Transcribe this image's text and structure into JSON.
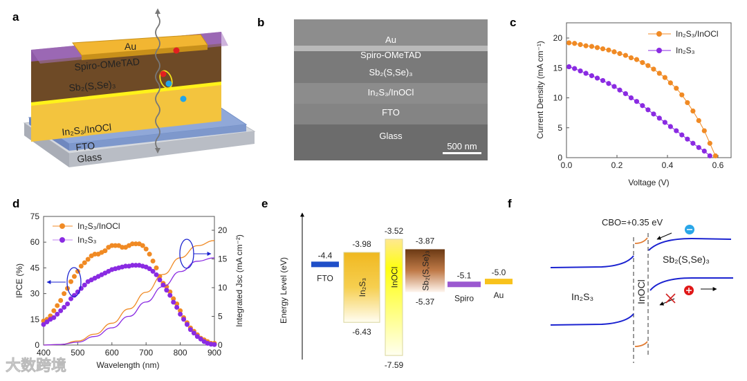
{
  "panels": {
    "a": {
      "letter": "a",
      "layers": [
        "Au",
        "Spiro-OMeTAD",
        "Sb₂(S,Se)₃",
        "In₂S₃/InOCl",
        "FTO",
        "Glass"
      ],
      "colors": {
        "au": "#f2b632",
        "spiro": "#9b59b6",
        "sb": "#6b4320",
        "in2s3": "#f5c842",
        "fto": "#7e9cd1",
        "glass": "#c9ccd2"
      }
    },
    "b": {
      "letter": "b",
      "layers": [
        "Au",
        "Spiro-OMeTAD",
        "Sb₂(S,Se)₃",
        "In₂S₃/InOCl",
        "FTO",
        "Glass"
      ],
      "scale_bar": "500 nm"
    },
    "c": {
      "letter": "c"
    },
    "d": {
      "letter": "d"
    },
    "e": {
      "letter": "e",
      "ylabel": "Energy Level (eV)",
      "materials": [
        {
          "name": "FTO",
          "level": -4.4,
          "level_label": "-4.4",
          "color": "#1f4fc8"
        },
        {
          "name": "In₂S₃",
          "cb": -3.98,
          "vb": -6.43,
          "cb_label": "-3.98",
          "vb_label": "-6.43",
          "color": "#f0b820"
        },
        {
          "name": "InOCl",
          "cb": -3.52,
          "vb": -7.59,
          "cb_label": "-3.52",
          "vb_label": "-7.59",
          "color": "#ffff00"
        },
        {
          "name": "Sb₂(S,Se)₃",
          "cb": -3.87,
          "vb": -5.37,
          "cb_label": "-3.87",
          "vb_label": "-5.37",
          "color": "#7a4a20"
        },
        {
          "name": "Spiro",
          "level": -5.1,
          "level_label": "-5.1",
          "color": "#9b59d0"
        },
        {
          "name": "Au",
          "level": -5.0,
          "level_label": "-5.0",
          "color": "#f8c21c"
        }
      ]
    },
    "f": {
      "letter": "f",
      "cbo_label": "CBO=+0.35 eV",
      "left_label": "In₂S₃",
      "middle_label": "InOCl",
      "right_label": "Sb₂(S,Se)₃"
    }
  },
  "watermark": "大数跨境",
  "chart_data": [
    {
      "id": "c",
      "type": "line",
      "xlabel": "Voltage (V)",
      "ylabel": "Current Density (mA cm⁻¹)",
      "xlim": [
        0,
        0.65
      ],
      "ylim": [
        0,
        22.5
      ],
      "xticks": [
        "0.0",
        "0.2",
        "0.4",
        "0.6"
      ],
      "yticks": [
        "0",
        "5",
        "10",
        "15",
        "20"
      ],
      "legend_position": "top-right",
      "series": [
        {
          "name": "In₂S₃/InOCl",
          "color": "#f08a24",
          "x": [
            0.01,
            0.032,
            0.055,
            0.077,
            0.1,
            0.122,
            0.144,
            0.167,
            0.189,
            0.211,
            0.234,
            0.256,
            0.278,
            0.301,
            0.323,
            0.345,
            0.368,
            0.39,
            0.412,
            0.435,
            0.457,
            0.479,
            0.501,
            0.524,
            0.546,
            0.568,
            0.59
          ],
          "y": [
            19.2,
            19.1,
            18.9,
            18.7,
            18.6,
            18.4,
            18.2,
            18.0,
            17.7,
            17.4,
            17.1,
            16.7,
            16.4,
            15.9,
            15.4,
            14.8,
            14.1,
            13.4,
            12.5,
            11.6,
            10.5,
            9.2,
            7.8,
            6.2,
            4.5,
            2.4,
            0.3
          ]
        },
        {
          "name": "In₂S₃",
          "color": "#8a2be2",
          "x": [
            0.01,
            0.032,
            0.055,
            0.077,
            0.1,
            0.122,
            0.144,
            0.167,
            0.189,
            0.211,
            0.234,
            0.256,
            0.278,
            0.301,
            0.323,
            0.345,
            0.368,
            0.39,
            0.412,
            0.435,
            0.457,
            0.479,
            0.501,
            0.524,
            0.546,
            0.568
          ],
          "y": [
            15.2,
            14.9,
            14.5,
            14.1,
            13.7,
            13.3,
            12.9,
            12.4,
            11.9,
            11.3,
            10.7,
            10.0,
            9.4,
            8.7,
            8.0,
            7.3,
            6.6,
            5.9,
            5.2,
            4.5,
            3.8,
            3.1,
            2.4,
            1.7,
            1.1,
            0.3
          ]
        }
      ]
    },
    {
      "id": "d",
      "type": "scatter",
      "xlabel": "Wavelength (nm)",
      "ylabel": "IPCE (%)",
      "y2label": "Integrated Jsc (mA cm⁻²)",
      "xlim": [
        400,
        900
      ],
      "ylim": [
        0,
        75
      ],
      "y2lim": [
        0,
        22.5
      ],
      "xticks": [
        "400",
        "500",
        "600",
        "700",
        "800",
        "900"
      ],
      "yticks": [
        "0",
        "15",
        "30",
        "45",
        "60",
        "75"
      ],
      "y2ticks": [
        "0",
        "5",
        "10",
        "15",
        "20"
      ],
      "legend_position": "top-left",
      "ipce_x": [
        400,
        410,
        420,
        430,
        440,
        450,
        460,
        470,
        480,
        490,
        500,
        510,
        520,
        530,
        540,
        550,
        560,
        570,
        580,
        590,
        600,
        610,
        620,
        630,
        640,
        650,
        660,
        670,
        680,
        690,
        700,
        710,
        720,
        730,
        740,
        750,
        760,
        770,
        780,
        790,
        800,
        810,
        820,
        830,
        840,
        850,
        860,
        870,
        880,
        890,
        900
      ],
      "series": [
        {
          "name": "In₂S₃/InOCl",
          "color": "#f08a24",
          "ipce": [
            14,
            15,
            17,
            20,
            23,
            26,
            30,
            33,
            37,
            40,
            43,
            46,
            48,
            50,
            52,
            53,
            53,
            54,
            55,
            57,
            58,
            58,
            58,
            57,
            57,
            58,
            59,
            59,
            59,
            58,
            56,
            53,
            49,
            45,
            40,
            36,
            34,
            31,
            27,
            24,
            20,
            16,
            13,
            10,
            8,
            6,
            4,
            3,
            2,
            1,
            1
          ],
          "jsc_x": [
            400,
            450,
            500,
            550,
            600,
            650,
            700,
            750,
            800,
            850,
            900
          ],
          "jsc": [
            0,
            0.1,
            0.7,
            1.9,
            3.8,
            6.3,
            9.2,
            12.3,
            15.2,
            17.3,
            18.2
          ]
        },
        {
          "name": "In₂S₃",
          "color": "#8a2be2",
          "ipce": [
            12,
            13.5,
            15,
            16,
            18,
            20,
            22,
            24,
            27,
            29,
            31,
            33,
            35,
            37,
            38,
            39,
            40,
            41,
            42,
            43,
            44,
            44.5,
            45,
            45.5,
            46,
            46,
            46.5,
            46.5,
            46.5,
            46,
            45.5,
            44.5,
            43,
            41,
            38,
            35,
            32,
            29,
            25,
            22,
            18,
            15,
            12,
            9,
            7,
            5,
            3.5,
            2,
            1,
            0.5,
            0.3
          ],
          "jsc_x": [
            400,
            450,
            500,
            550,
            600,
            650,
            700,
            750,
            800,
            850,
            900
          ],
          "jsc": [
            0,
            0.1,
            0.5,
            1.5,
            3.0,
            5.0,
            7.5,
            10.2,
            12.8,
            14.6,
            15.2
          ]
        }
      ]
    }
  ]
}
